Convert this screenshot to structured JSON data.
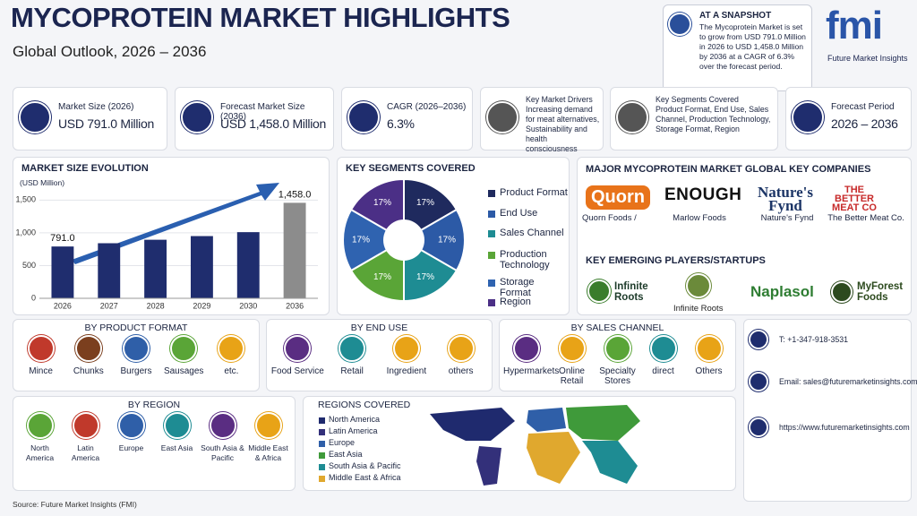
{
  "header": {
    "title": "MYCOPROTEIN MARKET HIGHLIGHTS",
    "subtitle": "Global Outlook, 2026 – 2036"
  },
  "snapshot": {
    "title": "AT A SNAPSHOT",
    "text": "The Mycoprotein Market is set to grow from USD 791.0 Million in 2026 to USD 1,458.0 Million by 2036 at a CAGR of 6.3% over the forecast period."
  },
  "logo": {
    "name": "fmi",
    "tagline": "Future Market Insights"
  },
  "kpis": [
    {
      "label": "Market Size (2026)",
      "value": "USD 791.0 Million"
    },
    {
      "label": "Forecast Market Size (2036)",
      "value": "USD 1,458.0 Million"
    },
    {
      "label": "CAGR (2026–2036)",
      "value": "6.3%"
    },
    {
      "label": "Key Market Drivers",
      "value": "Increasing demand for meat alternatives, Sustainability and health consciousness"
    },
    {
      "label": "Key Segments Covered",
      "value": "Product Format, End Use, Sales Channel, Production Technology, Storage Format, Region"
    },
    {
      "label": "Forecast Period",
      "value": "2026 – 2036"
    }
  ],
  "chart_data": [
    {
      "type": "bar",
      "title": "MARKET SIZE EVOLUTION",
      "y_label": "(USD Million)",
      "categories": [
        "2026",
        "2027",
        "2028",
        "2029",
        "2030",
        "2036"
      ],
      "values": [
        791.0,
        841,
        894,
        950,
        1010,
        1458.0
      ],
      "value_labels": [
        "791.0",
        null,
        null,
        null,
        null,
        "1,458.0"
      ],
      "colors": [
        "#1f2d6e",
        "#1f2d6e",
        "#1f2d6e",
        "#1f2d6e",
        "#1f2d6e",
        "#8c8c8c"
      ],
      "ylim": [
        0,
        1600
      ],
      "yticks": [
        0,
        500,
        {
          "value": 1000,
          "label": "1,000"
        },
        {
          "value": 1500,
          "label": "1,500"
        }
      ]
    },
    {
      "type": "pie",
      "title": "KEY SEGMENTS COVERED",
      "categories": [
        "Product Format",
        "End Use",
        "Sales Channel",
        "Production Technology",
        "Storage Format",
        "Region"
      ],
      "values": [
        17,
        17,
        17,
        17,
        17,
        17
      ],
      "value_labels": [
        "17%",
        "17%",
        "17%",
        "17%",
        "17%",
        "17%"
      ],
      "colors": [
        "#1f2a5e",
        "#2c5aa6",
        "#1e8c93",
        "#5aa537",
        "#2f63b0",
        "#4b2f86"
      ]
    }
  ],
  "companies": {
    "title": "MAJOR MYCOPROTEIN MARKET GLOBAL KEY COMPANIES",
    "items": [
      {
        "logo": "Quorn",
        "name": "Quorn Foods /"
      },
      {
        "logo": "ENOUGH",
        "name": "Marlow Foods"
      },
      {
        "logo": "Nature's Fynd",
        "name": "Nature's Fynd"
      },
      {
        "logo": "THE BETTER MEAT CO",
        "name": "The Better Meat Co."
      }
    ]
  },
  "emerging": {
    "title": "KEY EMERGING PLAYERS/STARTUPS",
    "items": [
      "Infinite Roots",
      "Infinite Roots",
      "Naplasol",
      "MyForest Foods"
    ]
  },
  "segments": [
    {
      "title": "BY PRODUCT FORMAT",
      "items": [
        "Mince",
        "Chunks",
        "Burgers",
        "Sausages",
        "etc."
      ]
    },
    {
      "title": "BY END USE",
      "items": [
        "Food Service",
        "Retail",
        "Ingredient",
        "others"
      ]
    },
    {
      "title": "BY SALES CHANNEL",
      "items": [
        "Hypermarkets",
        "Online Retail",
        "Specialty Stores",
        "direct",
        "Others"
      ]
    },
    {
      "title": "BY REGION",
      "items": [
        "North America",
        "Latin America",
        "Europe",
        "East Asia",
        "South Asia & Pacific",
        "Middle East & Africa"
      ]
    }
  ],
  "regions": {
    "title": "REGIONS COVERED",
    "items": [
      "North America",
      "Latin America",
      "Europe",
      "East Asia",
      "South Asia & Pacific",
      "Middle East & Africa"
    ]
  },
  "contact": {
    "phone": "T: +1-347-918-3531",
    "email": "Email: sales@futuremarketinsights.com",
    "web": "https://www.futuremarketinsights.com"
  },
  "source": "Source: Future Market Insights (FMI)"
}
